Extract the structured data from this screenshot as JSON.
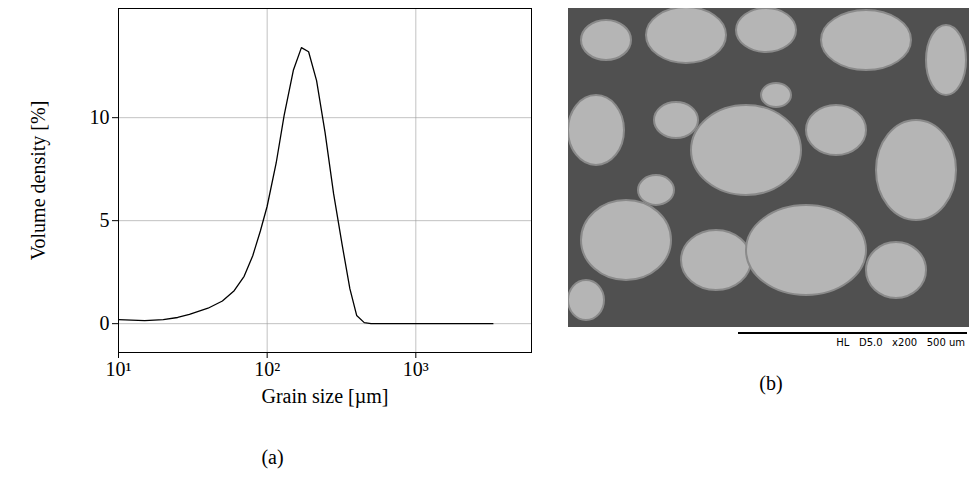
{
  "chart_data": {
    "type": "line",
    "panel_label": "(a)",
    "x_label": "Grain size [µm]",
    "y_label": "Volume density [%]",
    "x": [
      10,
      15,
      20,
      25,
      30,
      40,
      50,
      60,
      70,
      80,
      90,
      100,
      115,
      130,
      150,
      170,
      190,
      215,
      245,
      280,
      320,
      360,
      400,
      450,
      500,
      700,
      1000,
      2000,
      3300
    ],
    "values": [
      0.2,
      0.15,
      0.2,
      0.3,
      0.45,
      0.75,
      1.1,
      1.6,
      2.3,
      3.3,
      4.5,
      5.7,
      7.8,
      10.1,
      12.3,
      13.4,
      13.2,
      11.8,
      9.3,
      6.3,
      3.8,
      1.7,
      0.4,
      0.05,
      0,
      0,
      0,
      0,
      0
    ],
    "color": "#000000",
    "log": "x",
    "grid": true,
    "xlim": [
      10,
      6000
    ],
    "xticks": [
      {
        "value": 10,
        "label": "10¹"
      },
      {
        "value": 100,
        "label": "10²"
      },
      {
        "value": 1000,
        "label": "10³"
      }
    ],
    "ylim": [
      -1.4,
      15.3
    ],
    "yticks": [
      0,
      5,
      10
    ]
  },
  "image": {
    "panel_label": "(b)",
    "scale_bar_texts": [
      "HL",
      "D5.0",
      "x200",
      "500 um"
    ]
  }
}
